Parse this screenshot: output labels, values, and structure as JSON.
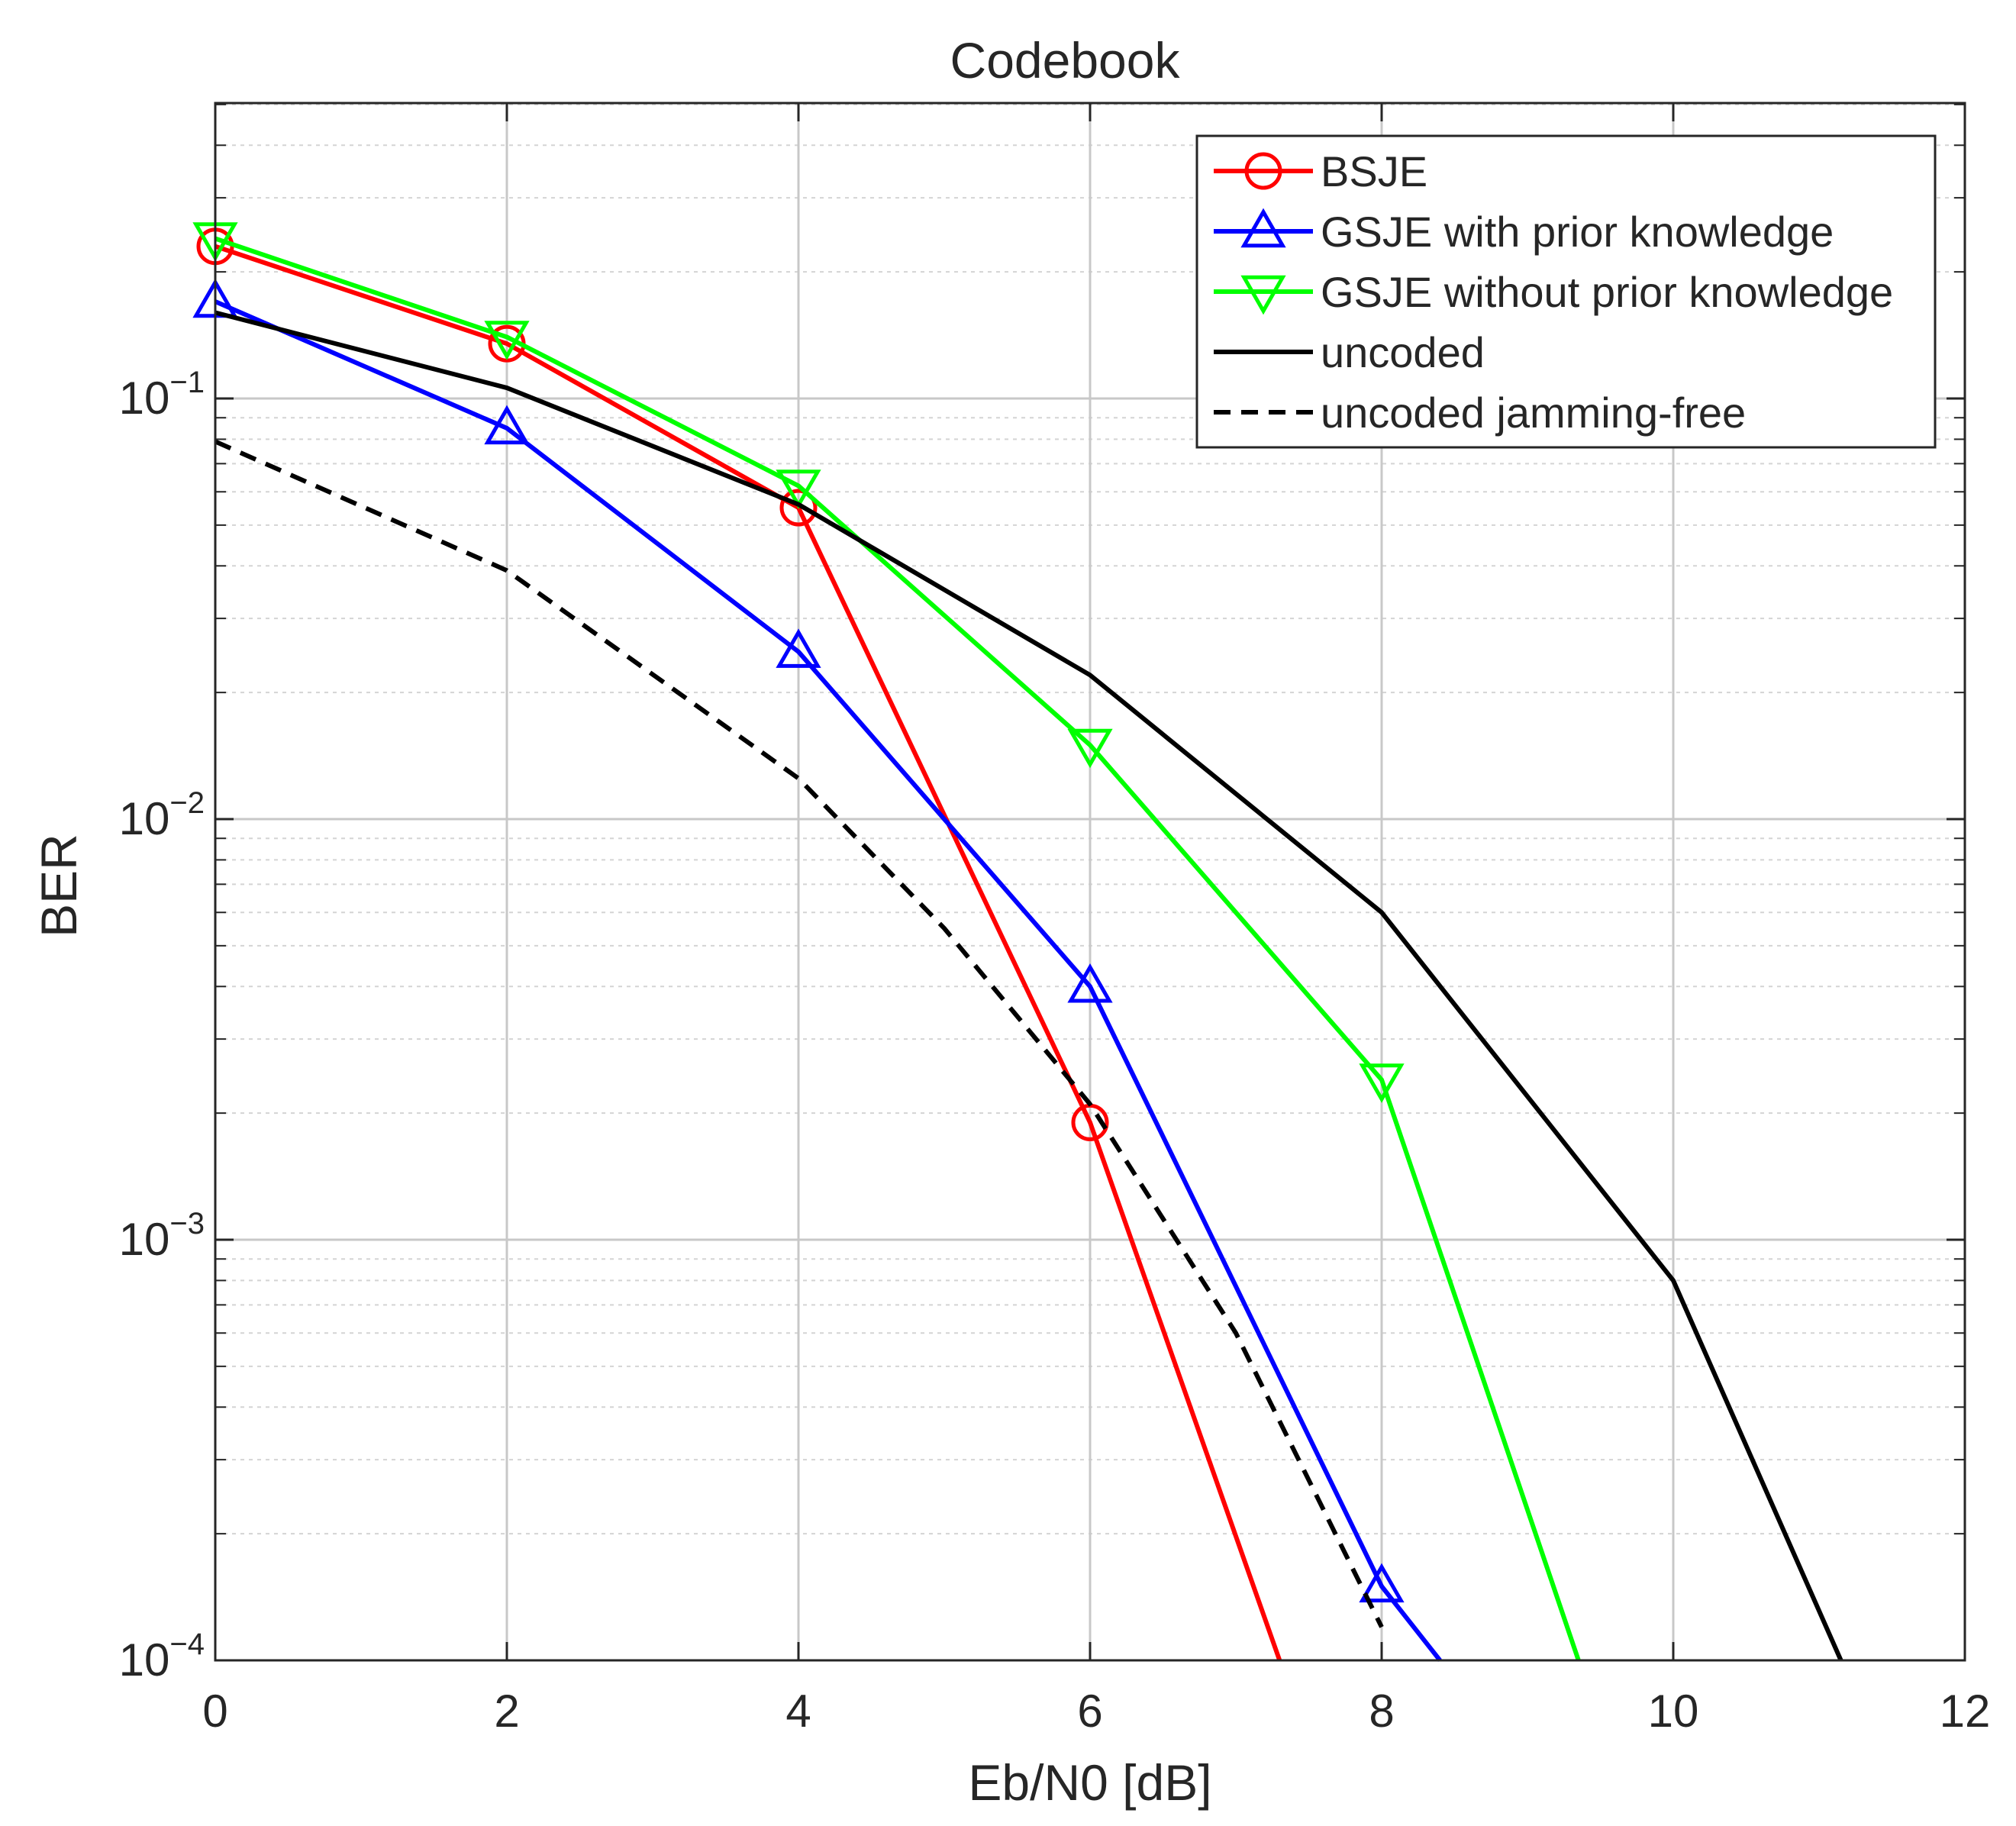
{
  "chart_data": {
    "type": "line",
    "title": "Codebook",
    "xlabel": "Eb/N0 [dB]",
    "ylabel": "BER",
    "xlim": [
      0,
      12
    ],
    "ylim": [
      0.0001,
      0.5
    ],
    "yscale": "log",
    "grid": true,
    "legend_position": "top-right",
    "xticks": [
      0,
      2,
      4,
      6,
      8,
      10,
      12
    ],
    "yticks": [
      {
        "value": 0.1,
        "base": "10",
        "exp": "−1"
      },
      {
        "value": 0.01,
        "base": "10",
        "exp": "−2"
      },
      {
        "value": 0.001,
        "base": "10",
        "exp": "−3"
      },
      {
        "value": 0.0001,
        "base": "10",
        "exp": "−4"
      }
    ],
    "series": [
      {
        "name": "BSJE",
        "color": "#ff0000",
        "marker": "circle",
        "dash": "solid",
        "x": [
          0,
          2,
          4,
          6,
          7.3
        ],
        "y": [
          0.23,
          0.135,
          0.055,
          0.0019,
          0.0001
        ],
        "marker_count": 4
      },
      {
        "name": "GSJE with prior knowledge",
        "color": "#0000ff",
        "marker": "triangle-up",
        "dash": "solid",
        "x": [
          0,
          2,
          4,
          6,
          8,
          8.4
        ],
        "y": [
          0.17,
          0.085,
          0.025,
          0.004,
          0.00015,
          0.0001
        ],
        "marker_count": 5
      },
      {
        "name": "GSJE without prior knowledge",
        "color": "#00ff00",
        "marker": "triangle-down",
        "dash": "solid",
        "x": [
          0,
          2,
          4,
          6,
          8,
          9.35
        ],
        "y": [
          0.24,
          0.14,
          0.062,
          0.015,
          0.0024,
          0.0001
        ],
        "marker_count": 5
      },
      {
        "name": "uncoded",
        "color": "#000000",
        "marker": "none",
        "dash": "solid",
        "x": [
          0,
          2,
          4,
          6,
          8,
          10,
          11.15
        ],
        "y": [
          0.16,
          0.106,
          0.056,
          0.022,
          0.006,
          0.0008,
          0.0001
        ],
        "marker_count": 0
      },
      {
        "name": "uncoded jamming-free",
        "color": "#000000",
        "marker": "none",
        "dash": "dashed",
        "x": [
          0,
          2,
          4,
          5,
          6,
          7,
          8
        ],
        "y": [
          0.079,
          0.039,
          0.0125,
          0.0055,
          0.0021,
          0.0006,
          0.00012
        ],
        "marker_count": 0
      }
    ]
  }
}
